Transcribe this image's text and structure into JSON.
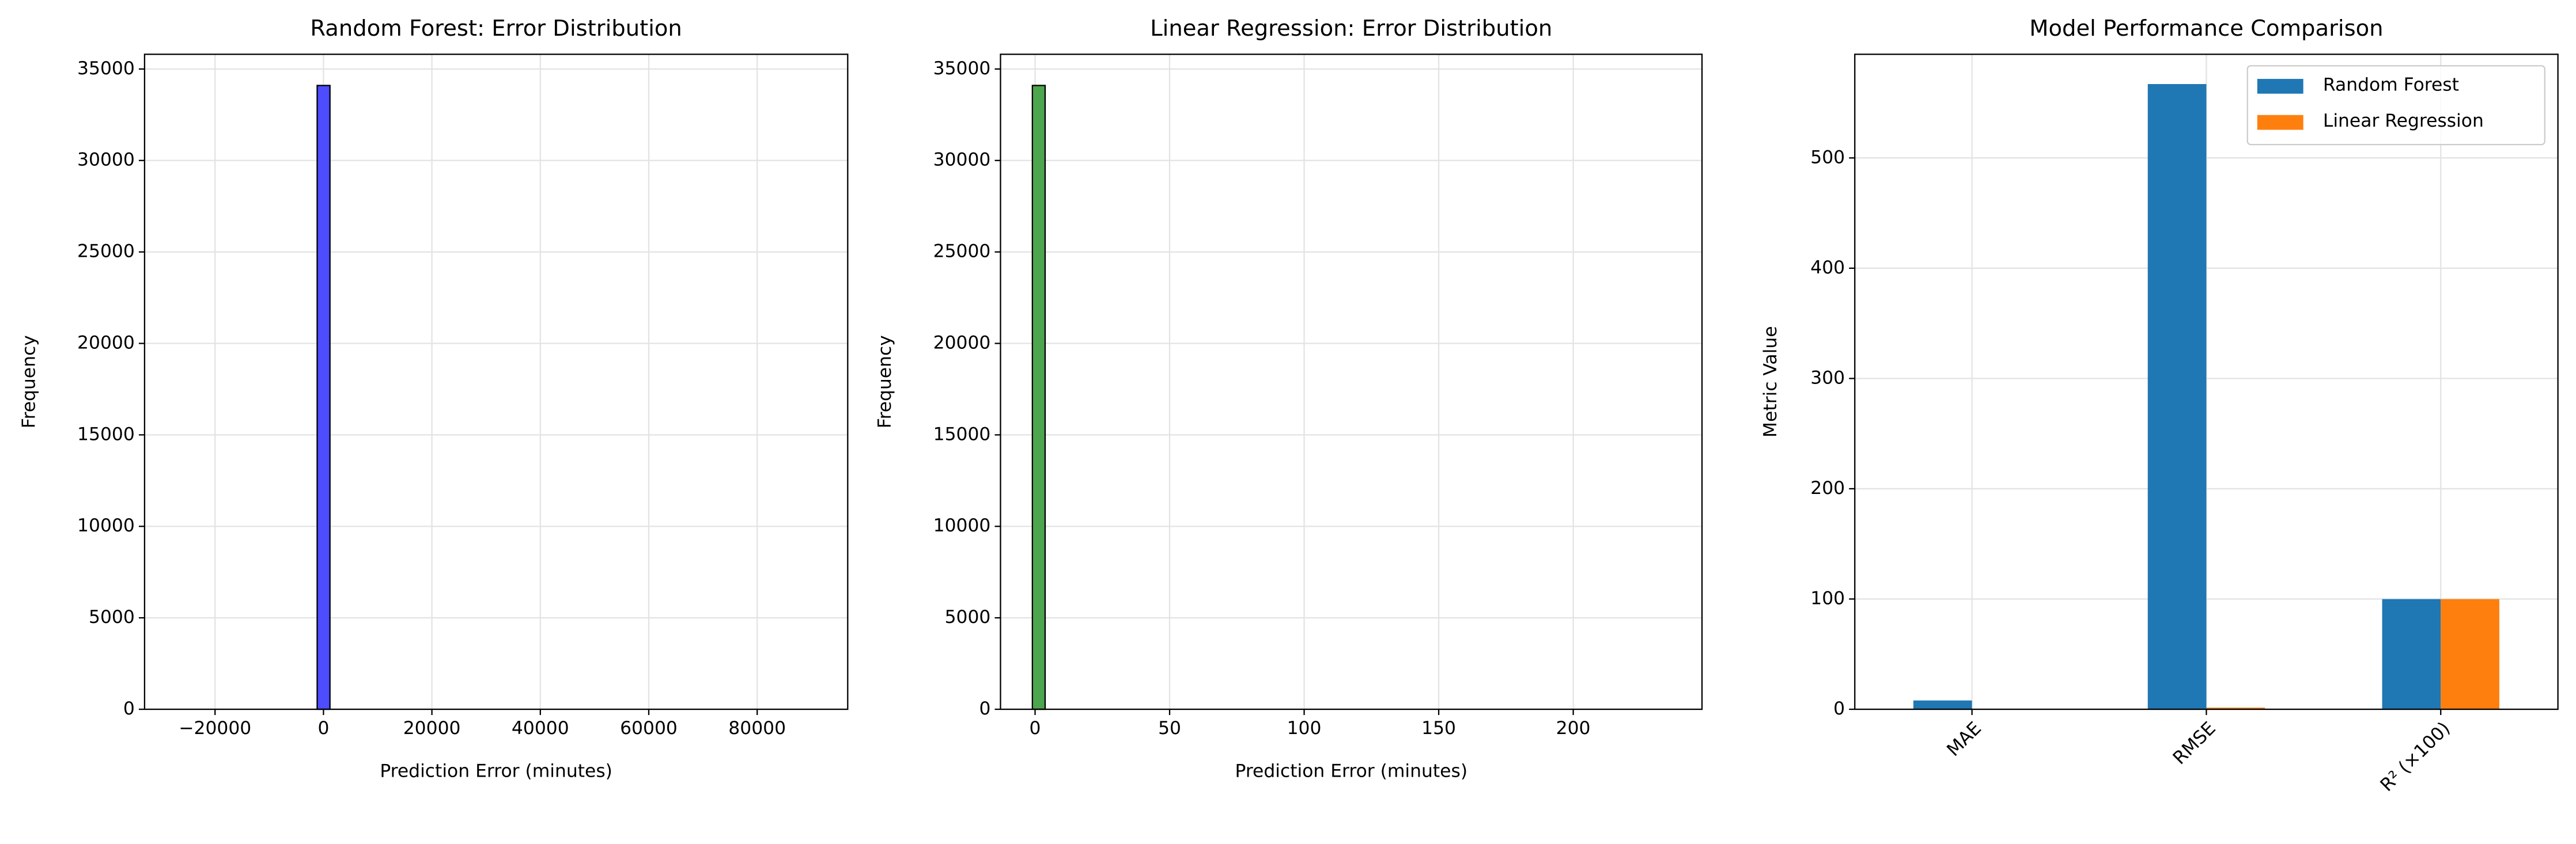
{
  "chart_data": [
    {
      "type": "histogram",
      "title": "Random Forest: Error Distribution",
      "xlabel": "Prediction Error (minutes)",
      "ylabel": "Frequency",
      "bins": [
        -27100,
        -24742,
        -22384,
        -20026,
        -17668,
        -15310,
        -12952,
        -10594,
        -8236,
        -5878,
        -3520,
        -1162,
        1196,
        3554,
        5912,
        8270,
        10628,
        12986,
        15344,
        17702,
        20060,
        22418,
        24776,
        27134,
        29492,
        31850,
        34208,
        36566,
        38924,
        41282,
        43640,
        45998,
        48356,
        50714,
        53072,
        55430,
        57788,
        60146,
        62504,
        64862,
        67220,
        69578,
        71936,
        74294,
        76652,
        79010,
        81368,
        83726,
        86084,
        88442,
        90800
      ],
      "counts": [
        0,
        0,
        0,
        0,
        0,
        0,
        0,
        0,
        0,
        0,
        0,
        34100,
        0,
        0,
        0,
        0,
        0,
        0,
        0,
        0,
        0,
        0,
        0,
        0,
        0,
        0,
        0,
        0,
        0,
        0,
        0,
        0,
        0,
        0,
        0,
        0,
        0,
        0,
        0,
        0,
        0,
        0,
        0,
        0,
        0,
        0,
        0,
        0,
        0,
        0
      ],
      "color": "#4d4dfe",
      "edgecolor": "#000000",
      "xlim": [
        -33000,
        96700
      ],
      "xticks": [
        {
          "value": -20000,
          "label": "−20000"
        },
        0,
        20000,
        40000,
        60000,
        80000
      ],
      "ylim": [
        0,
        35805
      ],
      "yticks": [
        0,
        5000,
        10000,
        15000,
        20000,
        25000,
        30000,
        35000
      ],
      "grid": true
    },
    {
      "type": "histogram",
      "title": "Linear Regression: Error Distribution",
      "xlabel": "Prediction Error (minutes)",
      "ylabel": "Frequency",
      "bins": [
        -1,
        3.74,
        8.48,
        13.22,
        17.96,
        22.7,
        27.44,
        32.18,
        36.92,
        41.66,
        46.4,
        51.14,
        55.88,
        60.62,
        65.36,
        70.1,
        74.84,
        79.58,
        84.32,
        89.06,
        93.8,
        98.54,
        103.28,
        108.02,
        112.76,
        117.5,
        122.24,
        126.98,
        131.72,
        136.46,
        141.2,
        145.94,
        150.68,
        155.42,
        160.16,
        164.9,
        169.64,
        174.38,
        179.12,
        183.86,
        188.6,
        193.34,
        198.08,
        202.82,
        207.56,
        212.3,
        217.04,
        221.78,
        226.52,
        231.26,
        236
      ],
      "counts": [
        34100,
        0,
        0,
        0,
        0,
        0,
        0,
        0,
        0,
        0,
        0,
        0,
        0,
        0,
        0,
        0,
        0,
        0,
        0,
        0,
        0,
        0,
        0,
        0,
        0,
        0,
        0,
        0,
        0,
        0,
        0,
        0,
        0,
        0,
        0,
        0,
        0,
        0,
        0,
        0,
        0,
        0,
        0,
        0,
        0,
        0,
        0,
        0,
        0,
        0
      ],
      "color": "#4da64d",
      "edgecolor": "#000000",
      "xlim": [
        -12.85,
        247.85
      ],
      "xticks": [
        0,
        50,
        100,
        150,
        200
      ],
      "ylim": [
        0,
        35805
      ],
      "yticks": [
        0,
        5000,
        10000,
        15000,
        20000,
        25000,
        30000,
        35000
      ],
      "grid": true
    },
    {
      "type": "bar",
      "title": "Model Performance Comparison",
      "ylabel": "Metric Value",
      "categories": [
        "MAE",
        "RMSE",
        "R² (×100)"
      ],
      "series": [
        {
          "name": "Random Forest",
          "color": "#1f77b4",
          "values": [
            8,
            567,
            99.9
          ]
        },
        {
          "name": "Linear Regression",
          "color": "#ff7f0e",
          "values": [
            0.3,
            1.5,
            99.9
          ]
        }
      ],
      "ylim": [
        0,
        594
      ],
      "yticks": [
        0,
        100,
        200,
        300,
        400,
        500
      ],
      "grid": true,
      "legend": "upper right"
    }
  ]
}
